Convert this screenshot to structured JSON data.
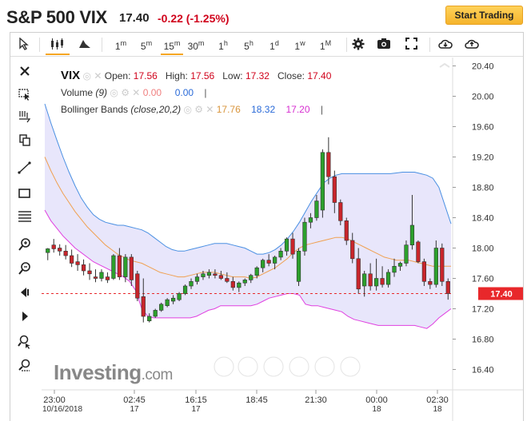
{
  "header": {
    "title": "S&P 500 VIX",
    "price": "17.40",
    "change": "-0.22 (-1.25%)",
    "start_button": "Start Trading"
  },
  "toolbar": {
    "timeframes": [
      {
        "num": "1",
        "unit": "m",
        "selected": false
      },
      {
        "num": "5",
        "unit": "m",
        "selected": false
      },
      {
        "num": "15",
        "unit": "m",
        "selected": true
      },
      {
        "num": "30",
        "unit": "m",
        "selected": false
      },
      {
        "num": "1",
        "unit": "h",
        "selected": false
      },
      {
        "num": "5",
        "unit": "h",
        "selected": false
      },
      {
        "num": "1",
        "unit": "d",
        "selected": false
      },
      {
        "num": "1",
        "unit": "w",
        "selected": false
      },
      {
        "num": "1",
        "unit": "M",
        "selected": false
      }
    ],
    "icons": [
      "cursor-icon",
      "candles-icon",
      "area-chart-icon",
      "gear-icon",
      "camera-icon",
      "fullscreen-icon",
      "download-icon",
      "upload-icon"
    ]
  },
  "legend": {
    "symbol": "VIX",
    "open_label": "Open:",
    "open": "17.56",
    "high_label": "High:",
    "high": "17.56",
    "low_label": "Low:",
    "low": "17.32",
    "close_label": "Close:",
    "close": "17.40",
    "volume_label": "Volume",
    "volume_param": "(9)",
    "volume_v1": "0.00",
    "volume_v2": "0.00",
    "bb_label": "Bollinger Bands",
    "bb_param": "(close,20,2)",
    "bb_mid": "17.76",
    "bb_upper": "18.32",
    "bb_lower": "17.20"
  },
  "watermark": {
    "brand": "Investing",
    "suffix": ".com"
  },
  "colors": {
    "up": "#2ca02c",
    "down": "#c9252b",
    "upper_band": "#4a90e2",
    "lower_band": "#e040e0",
    "mid": "#f0a050",
    "fill": "#e8e6fb",
    "current": "#e8282b"
  },
  "chart_data": {
    "type": "candlestick",
    "current_price": "17.40",
    "y_ticks": [
      "20.40",
      "20.00",
      "19.60",
      "19.20",
      "18.80",
      "18.40",
      "18.00",
      "17.60",
      "17.20",
      "16.80",
      "16.40"
    ],
    "y_range": [
      16.3,
      20.5
    ],
    "x_ticks": [
      {
        "time": "23:00",
        "date": "10/16/2018"
      },
      {
        "time": "02:45",
        "date": "17"
      },
      {
        "time": "16:15",
        "date": "17"
      },
      {
        "time": "18:45",
        "date": ""
      },
      {
        "time": "21:30",
        "date": ""
      },
      {
        "time": "00:00",
        "date": "18"
      },
      {
        "time": "02:30",
        "date": "18"
      }
    ],
    "candles": [
      {
        "o": 17.94,
        "h": 18.0,
        "l": 17.84,
        "c": 17.99
      },
      {
        "o": 18.04,
        "h": 18.12,
        "l": 17.94,
        "c": 17.99
      },
      {
        "o": 18.0,
        "h": 18.05,
        "l": 17.9,
        "c": 17.96
      },
      {
        "o": 17.96,
        "h": 18.04,
        "l": 17.85,
        "c": 17.9
      },
      {
        "o": 17.9,
        "h": 17.98,
        "l": 17.75,
        "c": 17.8
      },
      {
        "o": 17.82,
        "h": 17.92,
        "l": 17.7,
        "c": 17.78
      },
      {
        "o": 17.78,
        "h": 17.85,
        "l": 17.64,
        "c": 17.7
      },
      {
        "o": 17.7,
        "h": 17.8,
        "l": 17.58,
        "c": 17.66
      },
      {
        "o": 17.62,
        "h": 17.72,
        "l": 17.55,
        "c": 17.6
      },
      {
        "o": 17.6,
        "h": 17.72,
        "l": 17.56,
        "c": 17.68
      },
      {
        "o": 17.62,
        "h": 17.68,
        "l": 17.54,
        "c": 17.58
      },
      {
        "o": 17.6,
        "h": 17.92,
        "l": 17.58,
        "c": 17.9
      },
      {
        "o": 17.9,
        "h": 18.0,
        "l": 17.58,
        "c": 17.62
      },
      {
        "o": 17.62,
        "h": 17.92,
        "l": 17.55,
        "c": 17.88
      },
      {
        "o": 17.88,
        "h": 17.92,
        "l": 17.5,
        "c": 17.58
      },
      {
        "o": 17.66,
        "h": 17.7,
        "l": 17.3,
        "c": 17.34
      },
      {
        "o": 17.36,
        "h": 17.6,
        "l": 17.02,
        "c": 17.1
      },
      {
        "o": 17.04,
        "h": 17.14,
        "l": 17.02,
        "c": 17.1
      },
      {
        "o": 17.1,
        "h": 17.2,
        "l": 17.08,
        "c": 17.18
      },
      {
        "o": 17.18,
        "h": 17.28,
        "l": 17.16,
        "c": 17.26
      },
      {
        "o": 17.24,
        "h": 17.34,
        "l": 17.22,
        "c": 17.32
      },
      {
        "o": 17.3,
        "h": 17.38,
        "l": 17.26,
        "c": 17.34
      },
      {
        "o": 17.32,
        "h": 17.42,
        "l": 17.3,
        "c": 17.4
      },
      {
        "o": 17.4,
        "h": 17.52,
        "l": 17.38,
        "c": 17.5
      },
      {
        "o": 17.5,
        "h": 17.6,
        "l": 17.46,
        "c": 17.56
      },
      {
        "o": 17.56,
        "h": 17.66,
        "l": 17.52,
        "c": 17.62
      },
      {
        "o": 17.62,
        "h": 17.7,
        "l": 17.58,
        "c": 17.66
      },
      {
        "o": 17.64,
        "h": 17.72,
        "l": 17.6,
        "c": 17.68
      },
      {
        "o": 17.66,
        "h": 17.72,
        "l": 17.6,
        "c": 17.64
      },
      {
        "o": 17.64,
        "h": 17.7,
        "l": 17.58,
        "c": 17.6
      },
      {
        "o": 17.6,
        "h": 17.68,
        "l": 17.54,
        "c": 17.56
      },
      {
        "o": 17.56,
        "h": 17.62,
        "l": 17.44,
        "c": 17.48
      },
      {
        "o": 17.48,
        "h": 17.56,
        "l": 17.42,
        "c": 17.54
      },
      {
        "o": 17.54,
        "h": 17.6,
        "l": 17.5,
        "c": 17.58
      },
      {
        "o": 17.58,
        "h": 17.66,
        "l": 17.54,
        "c": 17.64
      },
      {
        "o": 17.64,
        "h": 17.76,
        "l": 17.6,
        "c": 17.74
      },
      {
        "o": 17.74,
        "h": 17.86,
        "l": 17.68,
        "c": 17.84
      },
      {
        "o": 17.84,
        "h": 17.92,
        "l": 17.76,
        "c": 17.8
      },
      {
        "o": 17.8,
        "h": 17.9,
        "l": 17.72,
        "c": 17.88
      },
      {
        "o": 17.88,
        "h": 18.0,
        "l": 17.84,
        "c": 17.96
      },
      {
        "o": 17.96,
        "h": 18.14,
        "l": 17.9,
        "c": 18.12
      },
      {
        "o": 18.12,
        "h": 18.2,
        "l": 17.86,
        "c": 17.92
      },
      {
        "o": 17.56,
        "h": 18.0,
        "l": 17.5,
        "c": 17.96
      },
      {
        "o": 17.96,
        "h": 18.4,
        "l": 17.9,
        "c": 18.34
      },
      {
        "o": 18.34,
        "h": 18.46,
        "l": 18.26,
        "c": 18.4
      },
      {
        "o": 18.4,
        "h": 18.7,
        "l": 18.36,
        "c": 18.62
      },
      {
        "o": 18.5,
        "h": 19.3,
        "l": 18.4,
        "c": 19.26
      },
      {
        "o": 19.26,
        "h": 19.46,
        "l": 18.84,
        "c": 18.94
      },
      {
        "o": 18.94,
        "h": 19.02,
        "l": 18.46,
        "c": 18.6
      },
      {
        "o": 18.6,
        "h": 18.64,
        "l": 18.3,
        "c": 18.36
      },
      {
        "o": 18.36,
        "h": 18.4,
        "l": 18.04,
        "c": 18.1
      },
      {
        "o": 18.1,
        "h": 18.2,
        "l": 17.8,
        "c": 17.86
      },
      {
        "o": 17.86,
        "h": 18.0,
        "l": 17.4,
        "c": 17.46
      },
      {
        "o": 17.5,
        "h": 17.7,
        "l": 17.36,
        "c": 17.66
      },
      {
        "o": 17.66,
        "h": 17.8,
        "l": 17.44,
        "c": 17.5
      },
      {
        "o": 17.5,
        "h": 17.86,
        "l": 17.44,
        "c": 17.6
      },
      {
        "o": 17.6,
        "h": 17.76,
        "l": 17.48,
        "c": 17.52
      },
      {
        "o": 17.52,
        "h": 17.72,
        "l": 17.48,
        "c": 17.68
      },
      {
        "o": 17.68,
        "h": 17.86,
        "l": 17.62,
        "c": 17.76
      },
      {
        "o": 17.76,
        "h": 17.82,
        "l": 17.7,
        "c": 17.8
      },
      {
        "o": 17.8,
        "h": 18.1,
        "l": 17.76,
        "c": 18.04
      },
      {
        "o": 18.04,
        "h": 18.7,
        "l": 17.98,
        "c": 18.3
      },
      {
        "o": 18.08,
        "h": 18.1,
        "l": 17.8,
        "c": 17.82
      },
      {
        "o": 17.82,
        "h": 17.86,
        "l": 17.5,
        "c": 17.56
      },
      {
        "o": 17.56,
        "h": 17.6,
        "l": 17.46,
        "c": 17.52
      },
      {
        "o": 17.52,
        "h": 18.1,
        "l": 17.48,
        "c": 18.0
      },
      {
        "o": 18.0,
        "h": 18.06,
        "l": 17.5,
        "c": 17.56
      },
      {
        "o": 17.56,
        "h": 17.6,
        "l": 17.32,
        "c": 17.4
      }
    ],
    "upper_band": [
      19.9,
      19.65,
      19.42,
      19.2,
      19.0,
      18.82,
      18.66,
      18.54,
      18.44,
      18.38,
      18.34,
      18.32,
      18.3,
      18.3,
      18.28,
      18.26,
      18.24,
      18.2,
      18.14,
      18.08,
      18.02,
      17.98,
      17.96,
      17.96,
      17.98,
      18.0,
      18.02,
      18.04,
      18.06,
      18.06,
      18.06,
      18.04,
      18.02,
      18.0,
      17.96,
      17.92,
      17.92,
      17.94,
      17.98,
      18.04,
      18.12,
      18.22,
      18.34,
      18.48,
      18.62,
      18.74,
      18.86,
      18.92,
      18.96,
      18.98,
      18.98,
      18.98,
      18.98,
      18.98,
      18.98,
      18.98,
      18.98,
      18.98,
      18.99,
      19.0,
      19.0,
      19.0,
      18.98,
      18.96,
      18.92,
      18.8,
      18.56,
      18.32
    ],
    "mid_band": [
      19.2,
      19.02,
      18.86,
      18.72,
      18.6,
      18.48,
      18.38,
      18.28,
      18.2,
      18.12,
      18.04,
      17.98,
      17.92,
      17.88,
      17.84,
      17.82,
      17.8,
      17.76,
      17.72,
      17.68,
      17.66,
      17.64,
      17.62,
      17.62,
      17.64,
      17.66,
      17.68,
      17.68,
      17.68,
      17.66,
      17.64,
      17.62,
      17.62,
      17.62,
      17.6,
      17.62,
      17.66,
      17.7,
      17.74,
      17.8,
      17.86,
      17.94,
      18.0,
      18.04,
      18.06,
      18.08,
      18.1,
      18.12,
      18.14,
      18.14,
      18.12,
      18.08,
      18.04,
      18.0,
      17.96,
      17.92,
      17.88,
      17.86,
      17.84,
      17.84,
      17.84,
      17.82,
      17.8,
      17.78,
      17.76,
      17.76,
      17.76,
      17.76
    ],
    "lower_band": [
      18.5,
      18.36,
      18.26,
      18.16,
      18.08,
      18.0,
      17.94,
      17.88,
      17.82,
      17.78,
      17.74,
      17.7,
      17.66,
      17.62,
      17.56,
      17.44,
      17.2,
      17.1,
      17.08,
      17.08,
      17.08,
      17.08,
      17.08,
      17.08,
      17.08,
      17.1,
      17.14,
      17.18,
      17.2,
      17.24,
      17.24,
      17.24,
      17.24,
      17.24,
      17.24,
      17.26,
      17.3,
      17.34,
      17.36,
      17.38,
      17.4,
      17.4,
      17.38,
      17.26,
      17.24,
      17.24,
      17.22,
      17.2,
      17.18,
      17.16,
      17.1,
      17.06,
      17.04,
      17.02,
      17.0,
      16.98,
      16.98,
      16.98,
      16.98,
      16.98,
      16.98,
      16.98,
      16.96,
      16.94,
      17.0,
      17.08,
      17.14,
      17.2
    ]
  }
}
